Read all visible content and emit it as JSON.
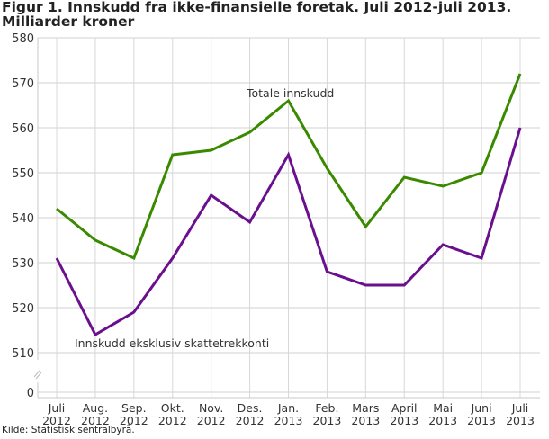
{
  "chart_data": {
    "type": "line",
    "title": "Figur 1. Innskudd fra ikke-finansielle foretak. Juli 2012-juli 2013. Milliarder kroner",
    "categories": [
      [
        "Juli",
        "2012"
      ],
      [
        "Aug.",
        "2012"
      ],
      [
        "Sep.",
        "2012"
      ],
      [
        "Okt.",
        "2012"
      ],
      [
        "Nov.",
        "2012"
      ],
      [
        "Des.",
        "2012"
      ],
      [
        "Jan.",
        "2013"
      ],
      [
        "Feb.",
        "2013"
      ],
      [
        "Mars",
        "2013"
      ],
      [
        "April",
        "2013"
      ],
      [
        "Mai",
        "2013"
      ],
      [
        "Juni",
        "2013"
      ],
      [
        "Juli",
        "2013"
      ]
    ],
    "yticks": [
      0,
      510,
      520,
      530,
      540,
      550,
      560,
      570,
      580
    ],
    "ylim": [
      510,
      580
    ],
    "axis_break": true,
    "grid": true,
    "series": [
      {
        "name": "Totale innskudd",
        "color": "#3a8a00",
        "values": [
          542,
          535,
          531,
          554,
          555,
          559,
          566,
          551,
          538,
          549,
          547,
          550,
          572
        ]
      },
      {
        "name": "Innskudd eksklusiv skattetrekkonti",
        "color": "#6a0f8e",
        "values": [
          531,
          514,
          519,
          531,
          545,
          539,
          554,
          528,
          525,
          525,
          534,
          531,
          560
        ]
      }
    ]
  },
  "source": "Kilde: Statistisk sentralbyrå."
}
